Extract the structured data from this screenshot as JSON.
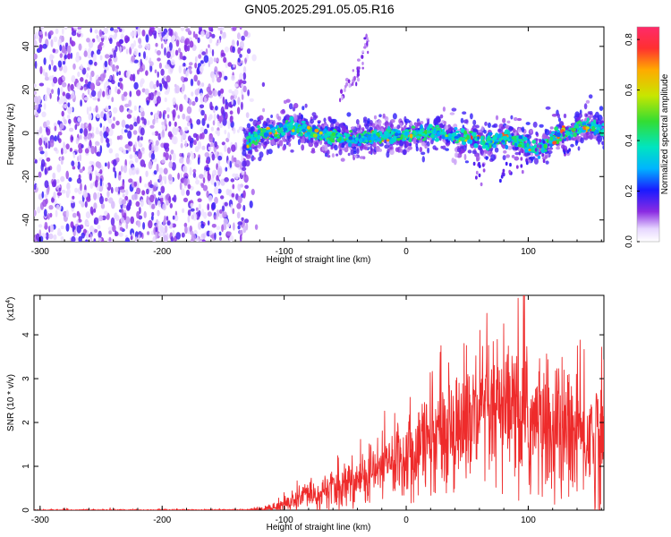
{
  "title": "GN05.2025.291.05.05.R16",
  "chart_data": [
    {
      "type": "heatmap",
      "xlabel": "Height of straight line (km)",
      "ylabel": "Frequency (Hz)",
      "xlim": [
        -305,
        162
      ],
      "ylim": [
        -50,
        49
      ],
      "xticks": [
        "-300",
        "-200",
        "-100",
        "0",
        "100"
      ],
      "yticks": [
        "40",
        "20",
        "0",
        "-20",
        "-40"
      ],
      "colorbar": {
        "label": "Normalized spectral amplitude",
        "range": [
          0,
          0.85
        ],
        "ticks": [
          "0.0",
          "0.2",
          "0.4",
          "0.6",
          "0.8"
        ]
      },
      "noise_region_x": [
        -305,
        -130
      ],
      "track": [
        {
          "x": -133,
          "y": -6
        },
        {
          "x": -125,
          "y": -2
        },
        {
          "x": -115,
          "y": 0
        },
        {
          "x": -105,
          "y": 1
        },
        {
          "x": -95,
          "y": 3
        },
        {
          "x": -85,
          "y": 2
        },
        {
          "x": -75,
          "y": 0
        },
        {
          "x": -65,
          "y": -1
        },
        {
          "x": -55,
          "y": -2
        },
        {
          "x": -45,
          "y": -3
        },
        {
          "x": -35,
          "y": -2
        },
        {
          "x": -25,
          "y": -1
        },
        {
          "x": -15,
          "y": -1
        },
        {
          "x": -5,
          "y": -2
        },
        {
          "x": 5,
          "y": -1
        },
        {
          "x": 15,
          "y": 0
        },
        {
          "x": 25,
          "y": 0
        },
        {
          "x": 35,
          "y": -1
        },
        {
          "x": 45,
          "y": -3
        },
        {
          "x": 55,
          "y": -1
        },
        {
          "x": 65,
          "y": -5
        },
        {
          "x": 75,
          "y": -3
        },
        {
          "x": 85,
          "y": -2
        },
        {
          "x": 95,
          "y": -4
        },
        {
          "x": 105,
          "y": -8
        },
        {
          "x": 115,
          "y": -5
        },
        {
          "x": 125,
          "y": -1
        },
        {
          "x": 135,
          "y": 1
        },
        {
          "x": 145,
          "y": 3
        },
        {
          "x": 155,
          "y": 3
        },
        {
          "x": 162,
          "y": 1
        }
      ],
      "secondary_trace": [
        {
          "x": -55,
          "y": 16
        },
        {
          "x": -40,
          "y": 28
        },
        {
          "x": -30,
          "y": 44
        }
      ]
    },
    {
      "type": "line",
      "xlabel": "Height of straight line (km)",
      "ylabel": "SNR (10 * v/v)",
      "multiplier_label": "(x10",
      "multiplier_exp": "4",
      "multiplier_close": ")",
      "xlim": [
        -305,
        162
      ],
      "ylim": [
        0,
        4.9
      ],
      "xticks": [
        "-300",
        "-200",
        "-100",
        "0",
        "100"
      ],
      "yticks": [
        "0",
        "1",
        "2",
        "3",
        "4"
      ],
      "series_color": "#ee2b2b",
      "envelope": [
        {
          "x": -305,
          "mean": 0.0,
          "spread": 0.02
        },
        {
          "x": -130,
          "mean": 0.0,
          "spread": 0.02
        },
        {
          "x": -110,
          "mean": 0.05,
          "spread": 0.08
        },
        {
          "x": -90,
          "mean": 0.25,
          "spread": 0.25
        },
        {
          "x": -60,
          "mean": 0.45,
          "spread": 0.4
        },
        {
          "x": -30,
          "mean": 0.8,
          "spread": 0.6
        },
        {
          "x": 0,
          "mean": 1.3,
          "spread": 0.9
        },
        {
          "x": 30,
          "mean": 1.8,
          "spread": 1.2
        },
        {
          "x": 60,
          "mean": 2.1,
          "spread": 1.5
        },
        {
          "x": 90,
          "mean": 2.1,
          "spread": 1.6
        },
        {
          "x": 120,
          "mean": 1.8,
          "spread": 1.5
        },
        {
          "x": 162,
          "mean": 1.6,
          "spread": 1.4
        }
      ],
      "peak_max": 4.9
    }
  ]
}
